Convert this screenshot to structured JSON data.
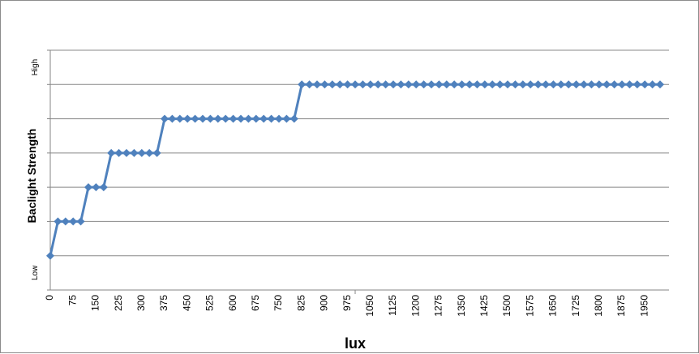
{
  "chart_data": {
    "type": "line",
    "title": "",
    "xlabel": "lux",
    "ylabel": "Baclight Strength",
    "y_low_label": "Low",
    "y_high_label": "High",
    "ylim": [
      0,
      7
    ],
    "x_tick_labels": [
      "0",
      "75",
      "150",
      "225",
      "300",
      "375",
      "450",
      "525",
      "600",
      "675",
      "750",
      "825",
      "900",
      "975",
      "1050",
      "1125",
      "1200",
      "1275",
      "1350",
      "1425",
      "1500",
      "1575",
      "1650",
      "1725",
      "1800",
      "1875",
      "1950"
    ],
    "x_step": 25,
    "grid": true,
    "legend": "none",
    "series": [
      {
        "name": "",
        "color": "#4f81bd",
        "marker": "diamond",
        "x": [
          0,
          25,
          50,
          75,
          100,
          125,
          150,
          175,
          200,
          225,
          250,
          275,
          300,
          325,
          350,
          375,
          400,
          425,
          450,
          475,
          500,
          525,
          550,
          575,
          600,
          625,
          650,
          675,
          700,
          725,
          750,
          775,
          800,
          825,
          850,
          875,
          900,
          925,
          950,
          975,
          1000,
          1025,
          1050,
          1075,
          1100,
          1125,
          1150,
          1175,
          1200,
          1225,
          1250,
          1275,
          1300,
          1325,
          1350,
          1375,
          1400,
          1425,
          1450,
          1475,
          1500,
          1525,
          1550,
          1575,
          1600,
          1625,
          1650,
          1675,
          1700,
          1725,
          1750,
          1775,
          1800,
          1825,
          1850,
          1875,
          1900,
          1925,
          1950,
          1975,
          2000
        ],
        "values": [
          1,
          2,
          2,
          2,
          2,
          3,
          3,
          3,
          4,
          4,
          4,
          4,
          4,
          4,
          4,
          5,
          5,
          5,
          5,
          5,
          5,
          5,
          5,
          5,
          5,
          5,
          5,
          5,
          5,
          5,
          5,
          5,
          5,
          6,
          6,
          6,
          6,
          6,
          6,
          6,
          6,
          6,
          6,
          6,
          6,
          6,
          6,
          6,
          6,
          6,
          6,
          6,
          6,
          6,
          6,
          6,
          6,
          6,
          6,
          6,
          6,
          6,
          6,
          6,
          6,
          6,
          6,
          6,
          6,
          6,
          6,
          6,
          6,
          6,
          6,
          6,
          6,
          6,
          6,
          6,
          6
        ]
      }
    ]
  }
}
